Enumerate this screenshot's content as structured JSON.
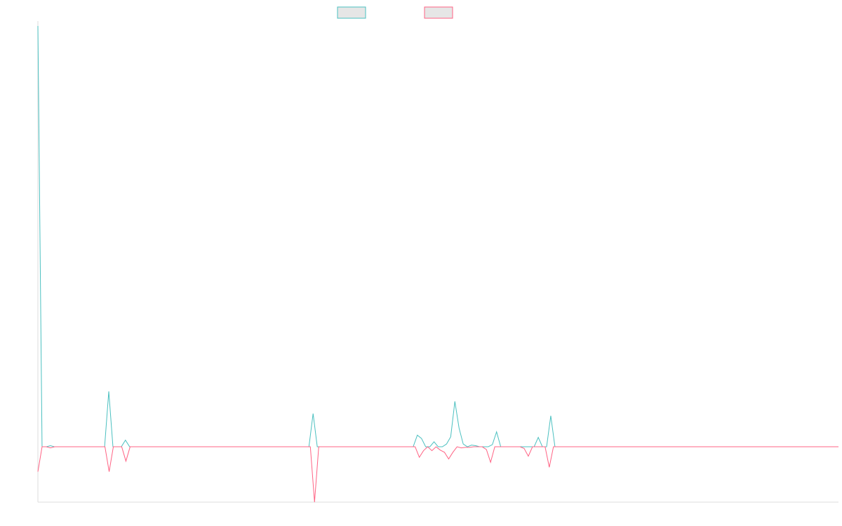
{
  "chart_data": {
    "type": "line",
    "title": "",
    "xlabel": "",
    "ylabel": "",
    "grid": false,
    "legend": {
      "position": "top-center",
      "labels": [
        "",
        ""
      ]
    },
    "ylim": [
      -10,
      76
    ],
    "point_count": 200,
    "series": [
      {
        "color": "#4bc0c0",
        "fill": "#e6e6e6",
        "values": [
          76,
          0,
          0,
          0.2,
          0,
          0,
          0,
          0,
          0,
          0,
          0,
          0,
          0,
          0,
          0,
          0,
          0,
          10,
          0,
          0,
          0,
          1.2,
          0,
          0,
          0,
          0,
          0,
          0,
          0,
          0,
          0,
          0,
          0,
          0,
          0,
          0,
          0,
          0,
          0,
          0,
          0,
          0,
          0,
          0,
          0,
          0,
          0,
          0,
          0,
          0,
          0,
          0,
          0,
          0,
          0,
          0,
          0,
          0,
          0,
          0,
          0,
          0,
          0,
          0,
          0,
          0,
          6,
          0,
          0,
          0,
          0,
          0,
          0,
          0,
          0,
          0,
          0,
          0,
          0,
          0,
          0,
          0,
          0,
          0,
          0,
          0,
          0,
          0,
          0,
          0,
          0,
          2.1,
          1.5,
          0,
          0,
          0.9,
          0,
          0,
          0.5,
          1.8,
          8.2,
          3.4,
          0.5,
          0,
          0.3,
          0.2,
          0,
          0,
          0,
          0.4,
          2.7,
          0,
          0,
          0,
          0,
          0,
          0,
          0,
          0,
          0,
          1.7,
          0,
          0,
          5.6,
          0,
          0,
          0,
          0,
          0,
          0,
          0,
          0,
          0,
          0,
          0,
          0,
          0,
          0,
          0,
          0,
          0,
          0,
          0,
          0,
          0,
          0,
          0,
          0,
          0,
          0,
          0,
          0,
          0,
          0,
          0,
          0,
          0,
          0,
          0,
          0,
          0,
          0,
          0,
          0,
          0,
          0,
          0,
          0,
          0,
          0,
          0,
          0,
          0,
          0,
          0,
          0,
          0,
          0,
          0,
          0,
          0,
          0,
          0,
          0,
          0,
          0,
          0,
          0,
          0,
          0,
          0,
          0,
          0
        ]
      },
      {
        "color": "#ff6384",
        "fill": "#e6e6e6",
        "values": [
          -4.5,
          0,
          0,
          -0.2,
          0,
          0,
          0,
          0,
          0,
          0,
          0,
          0,
          0,
          0,
          0,
          0,
          0,
          -4.5,
          0,
          0,
          0,
          -2.6,
          0,
          0,
          0,
          0,
          0,
          0,
          0,
          0,
          0,
          0,
          0,
          0,
          0,
          0,
          0,
          0,
          0,
          0,
          0,
          0,
          0,
          0,
          0,
          0,
          0,
          0,
          0,
          0,
          0,
          0,
          0,
          0,
          0,
          0,
          0,
          0,
          0,
          0,
          0,
          0,
          0,
          0,
          0,
          0,
          -10,
          0,
          0,
          0,
          0,
          0,
          0,
          0,
          0,
          0,
          0,
          0,
          0,
          0,
          0,
          0,
          0,
          0,
          0,
          0,
          0,
          0,
          0,
          0,
          0,
          -1.9,
          -0.7,
          0,
          -0.7,
          0,
          -0.6,
          -1,
          -2.2,
          -1,
          0,
          -0.2,
          -0.1,
          -0.1,
          0,
          0,
          0,
          -0.5,
          -2.8,
          0,
          0,
          0,
          0,
          0,
          0,
          0,
          -0.3,
          -1.7,
          0,
          0,
          0,
          0,
          -3.7,
          0,
          0,
          0,
          0,
          0,
          0,
          0,
          0,
          0,
          0,
          0,
          0,
          0,
          0,
          0,
          0,
          0,
          0,
          0,
          0,
          0,
          0,
          0,
          0,
          0,
          0,
          0,
          0,
          0,
          0,
          0,
          0,
          0,
          0,
          0,
          0,
          0,
          0,
          0,
          0,
          0,
          0,
          0,
          0,
          0,
          0,
          0,
          0,
          0,
          0,
          0,
          0,
          0,
          0,
          0,
          0,
          0,
          0,
          0,
          0,
          0,
          0,
          0,
          0,
          0,
          0,
          0,
          0,
          0
        ]
      }
    ]
  }
}
